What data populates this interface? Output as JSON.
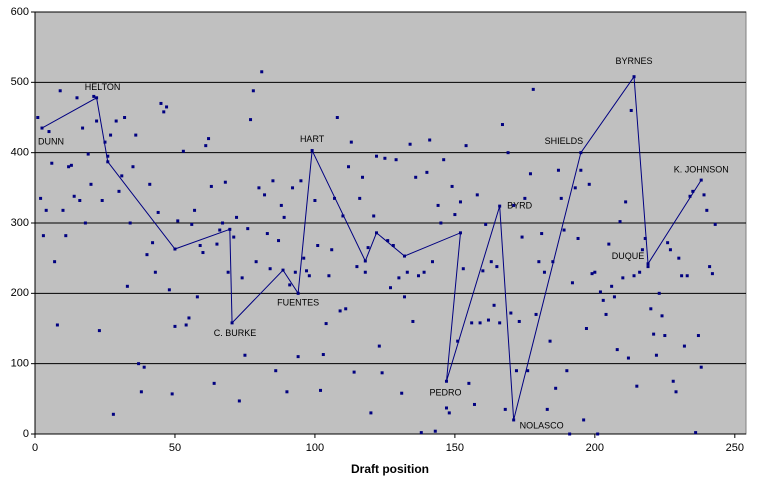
{
  "chart_data": {
    "type": "scatter",
    "x_label": "Draft position",
    "xlim": [
      0,
      254
    ],
    "ylim": [
      0,
      600
    ],
    "xticks": [
      0,
      50,
      100,
      150,
      200,
      250
    ],
    "yticks": [
      0,
      100,
      200,
      300,
      400,
      500,
      600
    ],
    "grid": true,
    "background": "#c0c0c0",
    "series": [
      {
        "color": "#000080",
        "x": [
          1,
          2,
          3,
          4,
          5,
          6,
          7,
          8,
          9,
          10,
          11,
          12,
          13,
          14,
          15,
          16,
          17,
          18,
          19,
          20,
          21,
          22,
          23,
          24,
          25,
          26,
          27,
          28,
          29,
          30,
          31,
          32,
          33,
          34,
          35,
          36,
          37,
          38,
          39,
          40,
          41,
          42,
          43,
          44,
          45,
          46,
          47,
          48,
          49,
          50,
          51,
          53,
          54,
          55,
          56,
          57,
          58,
          59,
          60,
          61,
          62,
          63,
          64,
          65,
          66,
          67,
          68,
          69,
          71,
          72,
          73,
          74,
          75,
          76,
          77,
          78,
          79,
          80,
          81,
          82,
          83,
          84,
          85,
          86,
          87,
          88,
          89,
          90,
          91,
          92,
          93,
          94,
          95,
          96,
          97,
          98,
          100,
          101,
          102,
          103,
          104,
          105,
          106,
          107,
          108,
          109,
          110,
          111,
          112,
          113,
          114,
          115,
          116,
          117,
          118,
          119,
          120,
          121,
          122,
          123,
          124,
          125,
          126,
          127,
          128,
          129,
          130,
          131,
          132,
          133,
          134,
          135,
          136,
          137,
          138,
          139,
          140,
          141,
          142,
          143,
          144,
          145,
          146,
          147,
          148,
          149,
          150,
          151,
          152,
          153,
          154,
          155,
          156,
          157,
          158,
          159,
          160,
          161,
          162,
          163,
          164,
          165,
          166,
          167,
          168,
          169,
          170,
          171,
          172,
          173,
          174,
          175,
          176,
          177,
          178,
          179,
          180,
          181,
          182,
          183,
          184,
          185,
          186,
          187,
          188,
          189,
          190,
          191,
          192,
          193,
          194,
          195,
          196,
          197,
          198,
          199,
          200,
          201,
          202,
          203,
          204,
          205,
          206,
          207,
          208,
          209,
          210,
          211,
          212,
          213,
          214,
          215,
          216,
          217,
          218,
          219,
          220,
          221,
          222,
          223,
          224,
          225,
          226,
          227,
          228,
          229,
          230,
          231,
          232,
          233,
          234,
          235,
          236,
          237,
          238,
          239,
          240,
          241,
          242,
          243
        ],
        "values": [
          450,
          335,
          282,
          318,
          430,
          385,
          245,
          155,
          488,
          318,
          282,
          380,
          382,
          338,
          478,
          332,
          435,
          300,
          398,
          355,
          480,
          445,
          147,
          332,
          415,
          395,
          425,
          28,
          445,
          345,
          367,
          450,
          210,
          300,
          380,
          425,
          100,
          60,
          95,
          255,
          355,
          272,
          230,
          315,
          470,
          458,
          465,
          205,
          57,
          153,
          303,
          402,
          155,
          165,
          298,
          318,
          195,
          268,
          258,
          410,
          420,
          352,
          72,
          270,
          290,
          300,
          358,
          230,
          280,
          308,
          47,
          222,
          112,
          292,
          447,
          488,
          245,
          350,
          515,
          340,
          285,
          235,
          360,
          90,
          275,
          325,
          308,
          60,
          212,
          350,
          230,
          110,
          360,
          250,
          232,
          225,
          332,
          268,
          62,
          113,
          157,
          225,
          262,
          335,
          450,
          175,
          310,
          178,
          380,
          415,
          88,
          238,
          335,
          365,
          230,
          265,
          30,
          310,
          395,
          125,
          87,
          392,
          275,
          208,
          268,
          390,
          222,
          58,
          195,
          230,
          412,
          160,
          365,
          225,
          2,
          230,
          372,
          418,
          245,
          4,
          325,
          300,
          390,
          37,
          30,
          352,
          312,
          132,
          330,
          235,
          410,
          72,
          158,
          42,
          340,
          158,
          232,
          298,
          162,
          245,
          183,
          238,
          158,
          440,
          35,
          400,
          172,
          325,
          90,
          160,
          280,
          335,
          90,
          370,
          490,
          170,
          245,
          285,
          230,
          35,
          132,
          245,
          65,
          375,
          335,
          290,
          90,
          0,
          215,
          350,
          278,
          375,
          20,
          150,
          355,
          228,
          230,
          0,
          202,
          190,
          170,
          270,
          210,
          195,
          120,
          302,
          222,
          330,
          108,
          460,
          225,
          68,
          230,
          262,
          278,
          238,
          178,
          142,
          112,
          200,
          168,
          140,
          272,
          262,
          75,
          60,
          250,
          225,
          125,
          225,
          338,
          345,
          2,
          140,
          95,
          340,
          318,
          238,
          228,
          298
        ]
      },
      {
        "color": "#000080",
        "x": [
          2.5,
          22,
          26,
          50,
          69.6,
          70.4,
          88.6,
          94,
          99,
          118,
          122,
          132,
          152,
          147,
          166,
          171,
          195,
          214,
          219,
          238
        ],
        "values": [
          435,
          478,
          387,
          263,
          291,
          158,
          233,
          200,
          403,
          246,
          286,
          253,
          286,
          75,
          324,
          20,
          400,
          508,
          242,
          361
        ],
        "labels": [
          "DUNN",
          "HELTON",
          null,
          null,
          null,
          "C. BURKE",
          null,
          "FUENTES",
          "HART",
          null,
          null,
          null,
          null,
          "PEDRO",
          "BYRD",
          "NOLASCO",
          "SHIELDS",
          "BYRNES",
          "DUQUE",
          "K. JOHNSON"
        ]
      }
    ]
  }
}
